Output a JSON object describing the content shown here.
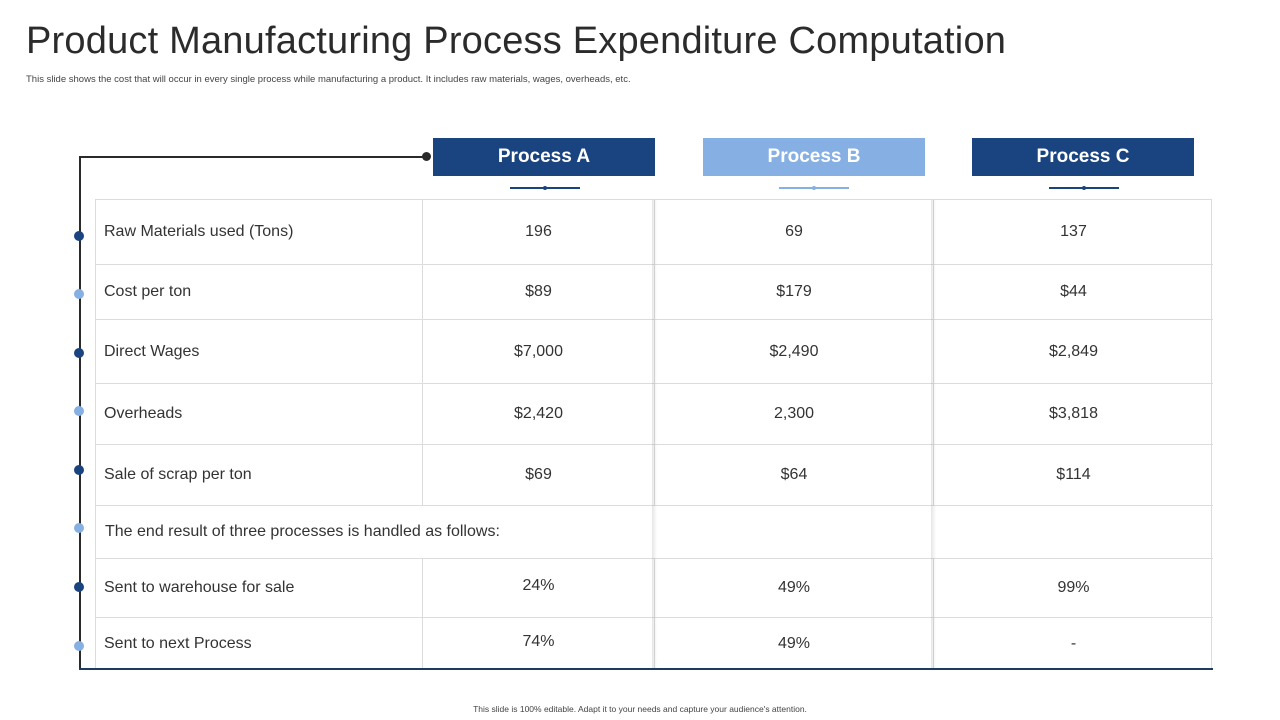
{
  "title": "Product Manufacturing Process Expenditure Computation",
  "subtitle": "This slide shows the cost that will occur in every single process while manufacturing a product. It includes raw materials, wages, overheads, etc.",
  "footer": "This slide is 100% editable. Adapt it to your needs and capture your audience's attention.",
  "headers": [
    "Process A",
    "Process B",
    "Process C"
  ],
  "colors": {
    "dark_blue": "#1a4480",
    "light_blue": "#86b0e3"
  },
  "rows": [
    {
      "label": "Raw Materials used (Tons)",
      "a": "196",
      "b": "69",
      "c": "137"
    },
    {
      "label": "Cost per ton",
      "a": "$89",
      "b": "$179",
      "c": "$44"
    },
    {
      "label": "Direct Wages",
      "a": "$7,000",
      "b": "$2,490",
      "c": "$2,849"
    },
    {
      "label": "Overheads",
      "a": "$2,420",
      "b": "2,300",
      "c": "$3,818"
    },
    {
      "label": "Sale of scrap per ton",
      "a": "$69",
      "b": "$64",
      "c": "$114"
    },
    {
      "label": "The end result of three processes is handled as follows:"
    },
    {
      "label": "Sent to warehouse for sale",
      "a": "24%",
      "b": "49%",
      "c": "99%"
    },
    {
      "label": "Sent to next Process",
      "a": "74%",
      "b": "49%",
      "c": "-"
    }
  ]
}
